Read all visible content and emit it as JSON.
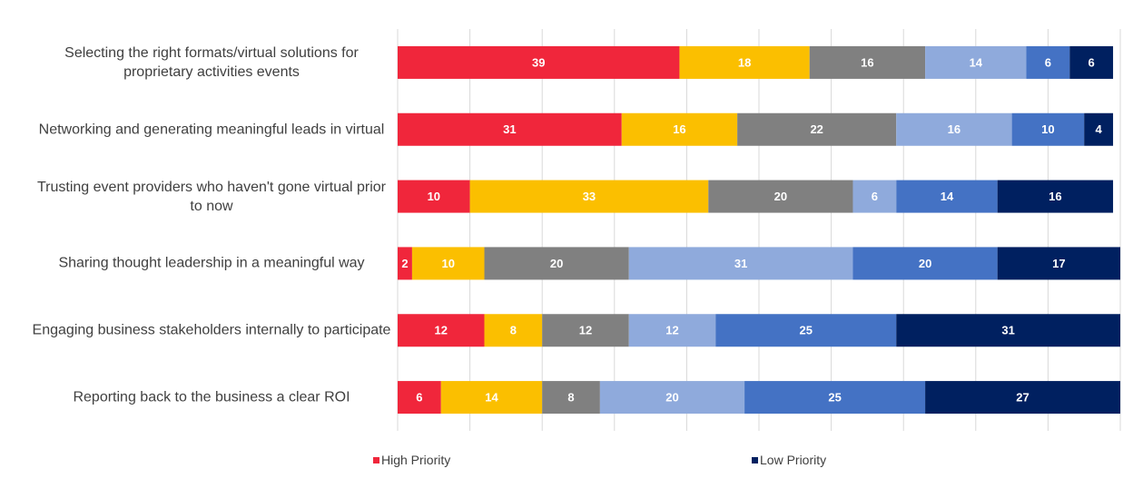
{
  "chart_data": {
    "type": "bar",
    "orientation": "horizontal",
    "stacked": true,
    "categories": [
      "Selecting the right formats/virtual solutions for proprietary activities events",
      "Networking and generating meaningful leads in virtual",
      "Trusting event providers who haven't gone virtual prior to now",
      "Sharing thought leadership in a meaningful way",
      "Engaging business stakeholders internally to participate",
      "Reporting back to the business a clear ROI"
    ],
    "series": [
      {
        "name": "High Priority",
        "color": "#f0263b",
        "values": [
          39,
          31,
          10,
          2,
          12,
          6
        ]
      },
      {
        "color": "#fbbf00",
        "values": [
          18,
          16,
          33,
          10,
          8,
          14
        ]
      },
      {
        "color": "#808080",
        "values": [
          16,
          22,
          20,
          20,
          12,
          8
        ]
      },
      {
        "color": "#8faadc",
        "values": [
          14,
          16,
          6,
          31,
          12,
          20
        ]
      },
      {
        "color": "#4472c4",
        "values": [
          6,
          10,
          14,
          20,
          25,
          25
        ]
      },
      {
        "name": "Low Priority",
        "color": "#002060",
        "values": [
          6,
          4,
          16,
          17,
          31,
          27
        ]
      }
    ],
    "xlim": [
      0,
      100
    ],
    "xticks": [
      0,
      10,
      20,
      30,
      40,
      50,
      60,
      70,
      80,
      90,
      100
    ],
    "grid": true
  }
}
